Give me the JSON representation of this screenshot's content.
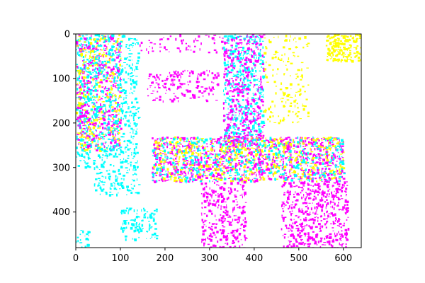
{
  "chart_data": {
    "type": "heatmap",
    "title": "",
    "xlabel": "",
    "ylabel": "",
    "image_size": [
      640,
      480
    ],
    "xlim": [
      0,
      640
    ],
    "ylim": [
      480,
      0
    ],
    "y_inverted": true,
    "x_ticks": [
      0,
      100,
      200,
      300,
      400,
      500,
      600
    ],
    "y_ticks": [
      0,
      100,
      200,
      300,
      400
    ],
    "grid": false,
    "legend": "none",
    "palette": [
      "#ff00ff",
      "#00ffff",
      "#ffff00",
      "#ffffff"
    ],
    "regions": [
      {
        "color": "#00ffff",
        "x": [
          0,
          40
        ],
        "y": [
          0,
          300
        ],
        "density": 0.35
      },
      {
        "color": "#ff00ff",
        "x": [
          0,
          100
        ],
        "y": [
          0,
          260
        ],
        "density": 0.25
      },
      {
        "color": "#ffff00",
        "x": [
          0,
          100
        ],
        "y": [
          0,
          260
        ],
        "density": 0.15
      },
      {
        "color": "#00ffff",
        "x": [
          40,
          140
        ],
        "y": [
          0,
          360
        ],
        "density": 0.25
      },
      {
        "color": "#ff00ff",
        "x": [
          140,
          330
        ],
        "y": [
          0,
          40
        ],
        "density": 0.12
      },
      {
        "color": "#ff00ff",
        "x": [
          160,
          320
        ],
        "y": [
          80,
          150
        ],
        "density": 0.22
      },
      {
        "color": "#00ffff",
        "x": [
          330,
          420
        ],
        "y": [
          0,
          250
        ],
        "density": 0.3
      },
      {
        "color": "#ff00ff",
        "x": [
          330,
          420
        ],
        "y": [
          0,
          250
        ],
        "density": 0.25
      },
      {
        "color": "#ffff00",
        "x": [
          560,
          640
        ],
        "y": [
          0,
          60
        ],
        "density": 0.6
      },
      {
        "color": "#ff00ff",
        "x": [
          170,
          600
        ],
        "y": [
          230,
          330
        ],
        "density": 0.35
      },
      {
        "color": "#ffff00",
        "x": [
          170,
          600
        ],
        "y": [
          230,
          330
        ],
        "density": 0.2
      },
      {
        "color": "#00ffff",
        "x": [
          170,
          600
        ],
        "y": [
          230,
          330
        ],
        "density": 0.15
      },
      {
        "color": "#ff00ff",
        "x": [
          280,
          380
        ],
        "y": [
          330,
          480
        ],
        "density": 0.3
      },
      {
        "color": "#ff00ff",
        "x": [
          460,
          610
        ],
        "y": [
          330,
          480
        ],
        "density": 0.35
      },
      {
        "color": "#00ffff",
        "x": [
          100,
          180
        ],
        "y": [
          390,
          460
        ],
        "density": 0.3
      },
      {
        "color": "#ffff00",
        "x": [
          420,
          520
        ],
        "y": [
          0,
          200
        ],
        "density": 0.12
      },
      {
        "color": "#00ffff",
        "x": [
          0,
          30
        ],
        "y": [
          440,
          480
        ],
        "density": 0.3
      }
    ]
  }
}
